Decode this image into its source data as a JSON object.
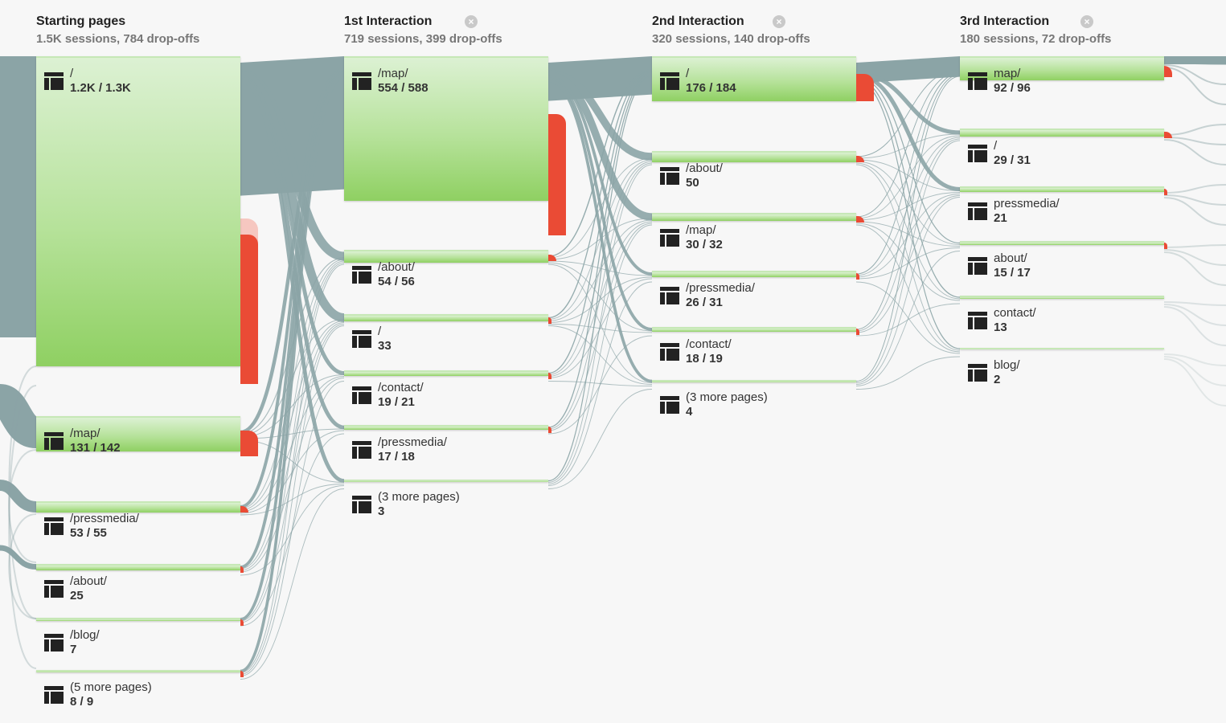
{
  "colors": {
    "flow": "#8ba4a6",
    "node": "#8fd062",
    "dropoff": "#ea4b35"
  },
  "columns": [
    {
      "title": "Starting pages",
      "subtitle": "1.5K sessions, 784 drop-offs",
      "closable": false,
      "nodes": [
        {
          "page": "/",
          "count": "1.2K / 1.3K",
          "drop_level": 0.45
        },
        {
          "page": "/map/",
          "count": "131 / 142",
          "drop_level": 0.6
        },
        {
          "page": "/pressmedia/",
          "count": "53 / 55",
          "drop_level": 0.5
        },
        {
          "page": "/about/",
          "count": "25",
          "drop_level": 0.35
        },
        {
          "page": "/blog/",
          "count": "7",
          "drop_level": 0.1
        },
        {
          "page": "(5 more pages)",
          "count": "8 / 9",
          "drop_level": 0.1
        }
      ]
    },
    {
      "title": "1st Interaction",
      "subtitle": "719 sessions, 399 drop-offs",
      "closable": true,
      "nodes": [
        {
          "page": "/map/",
          "count": "554 / 588",
          "drop_level": 0.7
        },
        {
          "page": "/about/",
          "count": "54 / 56",
          "drop_level": 0.4
        },
        {
          "page": "/",
          "count": "33",
          "drop_level": 0.3
        },
        {
          "page": "/contact/",
          "count": "19 / 21",
          "drop_level": 0.3
        },
        {
          "page": "/pressmedia/",
          "count": "17 / 18",
          "drop_level": 0.2
        },
        {
          "page": "(3 more pages)",
          "count": "3",
          "drop_level": 0
        }
      ]
    },
    {
      "title": "2nd Interaction",
      "subtitle": "320 sessions, 140 drop-offs",
      "closable": true,
      "nodes": [
        {
          "page": "/",
          "count": "176 / 184",
          "drop_level": 0.5
        },
        {
          "page": "/about/",
          "count": "50",
          "drop_level": 0.3
        },
        {
          "page": "/map/",
          "count": "30 / 32",
          "drop_level": 0.3
        },
        {
          "page": "/pressmedia/",
          "count": "26 / 31",
          "drop_level": 0.2
        },
        {
          "page": "/contact/",
          "count": "18 / 19",
          "drop_level": 0.2
        },
        {
          "page": "(3 more pages)",
          "count": "4",
          "drop_level": 0
        }
      ]
    },
    {
      "title": "3rd Interaction",
      "subtitle": "180 sessions, 72 drop-offs",
      "closable": true,
      "nodes": [
        {
          "page": "map/",
          "count": "92 / 96",
          "drop_level": 0.4
        },
        {
          "page": "/",
          "count": "29 / 31",
          "drop_level": 0.2
        },
        {
          "page": "pressmedia/",
          "count": "21",
          "drop_level": 0.2
        },
        {
          "page": "about/",
          "count": "15 / 17",
          "drop_level": 0.2
        },
        {
          "page": "contact/",
          "count": "13",
          "drop_level": 0
        },
        {
          "page": "blog/",
          "count": "2",
          "drop_level": 0
        }
      ]
    }
  ]
}
